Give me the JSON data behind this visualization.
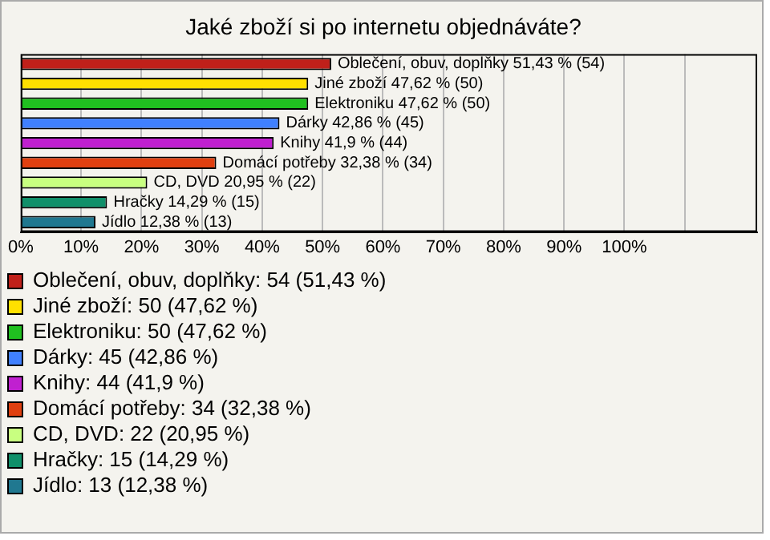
{
  "chart_data": {
    "type": "bar",
    "orientation": "horizontal",
    "title": "Jaké zboží si po internetu objednáváte?",
    "categories": [
      null,
      null,
      null,
      null,
      null,
      null,
      null,
      null,
      null
    ],
    "series": [
      {
        "name": "Oblečení, obuv, doplňky",
        "color": "#c0201a",
        "values": [
          51.43,
          null,
          null,
          null,
          null,
          null,
          null,
          null,
          null
        ],
        "value_labels": [
          "Oblečení, obuv, doplňky 51,43 % (54)",
          null,
          null,
          null,
          null,
          null,
          null,
          null,
          null
        ]
      },
      {
        "name": "Jiné zboží",
        "color": "#ffe000",
        "values": [
          null,
          47.62,
          null,
          null,
          null,
          null,
          null,
          null,
          null
        ],
        "value_labels": [
          null,
          "Jiné zboží 47,62 % (50)",
          null,
          null,
          null,
          null,
          null,
          null,
          null
        ]
      },
      {
        "name": "Elektroniku",
        "color": "#20c020",
        "values": [
          null,
          null,
          47.62,
          null,
          null,
          null,
          null,
          null,
          null
        ],
        "value_labels": [
          null,
          null,
          "Elektroniku 47,62 % (50)",
          null,
          null,
          null,
          null,
          null,
          null
        ]
      },
      {
        "name": "Dárky",
        "color": "#4080ff",
        "values": [
          null,
          null,
          null,
          42.86,
          null,
          null,
          null,
          null,
          null
        ],
        "value_labels": [
          null,
          null,
          null,
          "Dárky 42,86 % (45)",
          null,
          null,
          null,
          null,
          null
        ]
      },
      {
        "name": "Knihy",
        "color": "#c020d0",
        "values": [
          null,
          null,
          null,
          null,
          41.9,
          null,
          null,
          null,
          null
        ],
        "value_labels": [
          null,
          null,
          null,
          null,
          "Knihy 41,9 % (44)",
          null,
          null,
          null,
          null
        ]
      },
      {
        "name": "Domácí potřeby",
        "color": "#e04010",
        "values": [
          null,
          null,
          null,
          null,
          null,
          32.38,
          null,
          null,
          null
        ],
        "value_labels": [
          null,
          null,
          null,
          null,
          null,
          "Domácí potřeby 32,38 % (34)",
          null,
          null,
          null
        ]
      },
      {
        "name": "CD, DVD",
        "color": "#c8ff80",
        "values": [
          null,
          null,
          null,
          null,
          null,
          null,
          20.95,
          null,
          null
        ],
        "value_labels": [
          null,
          null,
          null,
          null,
          null,
          null,
          "CD, DVD 20,95 % (22)",
          null,
          null
        ]
      },
      {
        "name": "Hračky",
        "color": "#10906a",
        "values": [
          null,
          null,
          null,
          null,
          null,
          null,
          null,
          14.29,
          null
        ],
        "value_labels": [
          null,
          null,
          null,
          null,
          null,
          null,
          null,
          "Hračky 14,29 % (15)",
          null
        ]
      },
      {
        "name": "Jídlo",
        "color": "#207890",
        "values": [
          null,
          null,
          null,
          null,
          null,
          null,
          null,
          null,
          12.38
        ],
        "value_labels": [
          null,
          null,
          null,
          null,
          null,
          null,
          null,
          null,
          "Jídlo 12,38 % (13)"
        ]
      }
    ],
    "xlim": [
      0,
      122
    ],
    "xticks": [
      {
        "value": 0,
        "label": "0%"
      },
      {
        "value": 10,
        "label": "10%"
      },
      {
        "value": 20,
        "label": "20%"
      },
      {
        "value": 30,
        "label": "30%"
      },
      {
        "value": 40,
        "label": "40%"
      },
      {
        "value": 50,
        "label": "50%"
      },
      {
        "value": 60,
        "label": "60%"
      },
      {
        "value": 70,
        "label": "70%"
      },
      {
        "value": 80,
        "label": "80%"
      },
      {
        "value": 90,
        "label": "90%"
      },
      {
        "value": 100,
        "label": "100%"
      },
      {
        "value": 110,
        "label": null
      }
    ],
    "grid": "x",
    "tick_labels": "x",
    "legend": "bottom",
    "annotations": [
      ": 54 (51,43 %)",
      ": 50 (47,62 %)",
      ": 50 (47,62 %)",
      ": 45 (42,86 %)",
      ": 44 (41,9 %)",
      ": 34 (32,38 %)",
      ": 22 (20,95 %)",
      ": 15 (14,29 %)",
      ": 13 (12,38 %)"
    ]
  }
}
